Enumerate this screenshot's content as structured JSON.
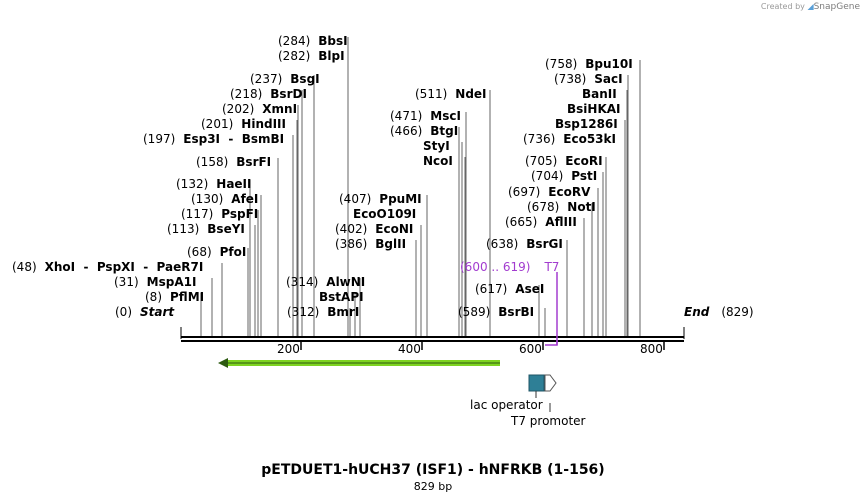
{
  "credit": {
    "text": "Created by",
    "brand": "SnapGene"
  },
  "title": "pETDUET1-hUCH37 (ISF1) - hNFRKB (1-156)",
  "length_label": "829 bp",
  "ends": {
    "start": {
      "pos": "(0)",
      "name": "Start"
    },
    "end": {
      "pos": "(829)",
      "name": "End"
    }
  },
  "ticks": [
    "200",
    "400",
    "600",
    "800"
  ],
  "enzymes": [
    {
      "pos": "(8)",
      "name": "PflMI"
    },
    {
      "pos": "(31)",
      "name": "MspA1I"
    },
    {
      "pos": "(48)",
      "name": "XhoI  -  PspXI  -  PaeR7I"
    },
    {
      "pos": "(68)",
      "name": "PfoI"
    },
    {
      "pos": "(113)",
      "name": "BseYI"
    },
    {
      "pos": "(117)",
      "name": "PspFI"
    },
    {
      "pos": "(130)",
      "name": "AfeI"
    },
    {
      "pos": "(132)",
      "name": "HaeII"
    },
    {
      "pos": "(158)",
      "name": "BsrFI"
    },
    {
      "pos": "(197)",
      "name": "Esp3I  -  BsmBI"
    },
    {
      "pos": "(201)",
      "name": "HindIII"
    },
    {
      "pos": "(202)",
      "name": "XmnI"
    },
    {
      "pos": "(218)",
      "name": "BsrDI"
    },
    {
      "pos": "(237)",
      "name": "BsgI"
    },
    {
      "pos": "(282)",
      "name": "BlpI"
    },
    {
      "pos": "(284)",
      "name": "BbsI"
    },
    {
      "pos": "(312)",
      "name": "BmrI"
    },
    {
      "pos": "",
      "name": "BstAPI"
    },
    {
      "pos": "(314)",
      "name": "AlwNI"
    },
    {
      "pos": "(386)",
      "name": "BglII"
    },
    {
      "pos": "(402)",
      "name": "EcoNI"
    },
    {
      "pos": "",
      "name": "EcoO109I"
    },
    {
      "pos": "(407)",
      "name": "PpuMI"
    },
    {
      "pos": "(466)",
      "name": "BtgI"
    },
    {
      "pos": "",
      "name": "StyI"
    },
    {
      "pos": "",
      "name": "NcoI"
    },
    {
      "pos": "(471)",
      "name": "MscI"
    },
    {
      "pos": "(511)",
      "name": "NdeI"
    },
    {
      "pos": "(589)",
      "name": "BsrBI"
    },
    {
      "pos": "(617)",
      "name": "AseI"
    },
    {
      "pos": "(638)",
      "name": "BsrGI"
    },
    {
      "pos": "(665)",
      "name": "AflIII"
    },
    {
      "pos": "(678)",
      "name": "NotI"
    },
    {
      "pos": "(697)",
      "name": "EcoRV"
    },
    {
      "pos": "(704)",
      "name": "PstI"
    },
    {
      "pos": "(705)",
      "name": "EcoRI"
    },
    {
      "pos": "(736)",
      "name": "Eco53kI"
    },
    {
      "pos": "",
      "name": "Bsp1286I"
    },
    {
      "pos": "",
      "name": "BsiHKAI"
    },
    {
      "pos": "",
      "name": "BanII"
    },
    {
      "pos": "(738)",
      "name": "SacI"
    },
    {
      "pos": "(758)",
      "name": "Bpu10I"
    }
  ],
  "primer": {
    "range": "(600 .. 619)",
    "name": "T7",
    "color": "#a23ccf"
  },
  "features": [
    {
      "name": "lac operator",
      "color": "#2e7f96"
    },
    {
      "name": "T7 promoter",
      "color": "#ffffff"
    },
    {
      "name": "orf-arrow",
      "color": "#7ed321"
    }
  ]
}
